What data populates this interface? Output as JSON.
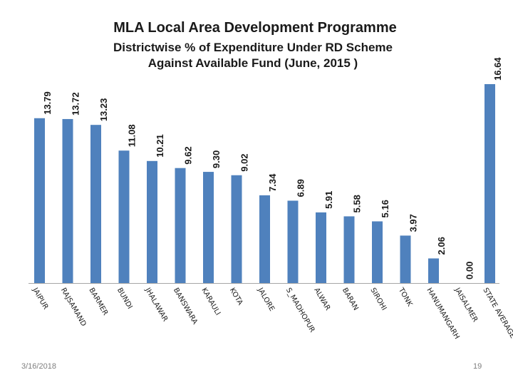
{
  "chart_data": {
    "type": "bar",
    "title": "MLA Local Area Development Programme",
    "subtitle": "Districtwise %  of Expenditure Under RD Scheme\nAgainst  Available Fund (June, 2015 )",
    "categories": [
      "JAIPUR",
      "RAJSAMAND",
      "BARMER",
      "BUNDI",
      "JHALAWAR",
      "BANSWARA",
      "KARAULI",
      "KOTA",
      "JALORE",
      "S_MADHOPUR",
      "ALWAR",
      "BARAN",
      "SIROHI",
      "TONK",
      "HANUMANGARH",
      "JAISALMER",
      "STATE AVERAGE"
    ],
    "values": [
      13.79,
      13.72,
      13.23,
      11.08,
      10.21,
      9.62,
      9.3,
      9.02,
      7.34,
      6.89,
      5.91,
      5.58,
      5.16,
      3.97,
      2.06,
      0.0,
      16.64
    ],
    "value_labels": [
      "13.79",
      "13.72",
      "13.23",
      "11.08",
      "10.21",
      "9.62",
      "9.30",
      "9.02",
      "7.34",
      "6.89",
      "5.91",
      "5.58",
      "5.16",
      "3.97",
      "2.06",
      "0.00",
      "16.64"
    ],
    "xlabel": "",
    "ylabel": "",
    "ylim": [
      0,
      16.64
    ],
    "grid": false,
    "legend": "none",
    "bar_color": "#4f81bd",
    "axis_color": "#a6a6a6"
  },
  "footer": {
    "date": "3/16/2018",
    "page_number": "19"
  }
}
